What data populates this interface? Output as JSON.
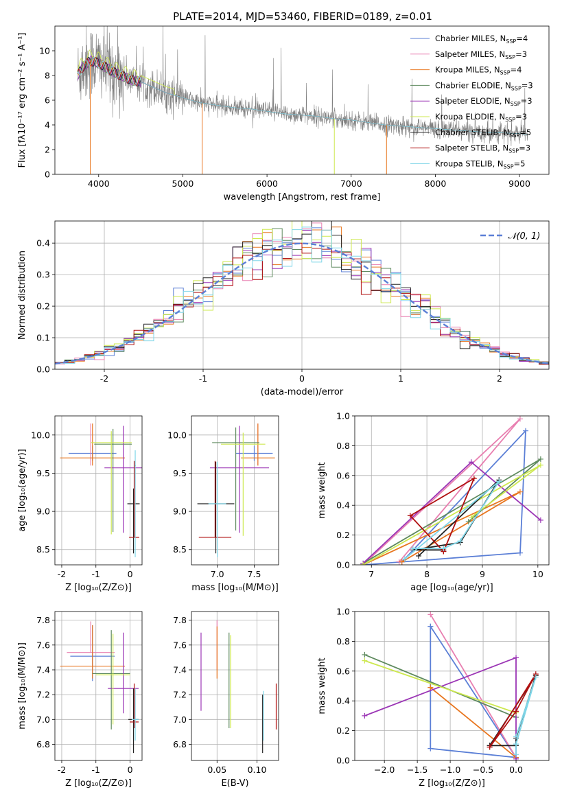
{
  "figure_title": "PLATE=2014, MJD=53460, FIBERID=0189, z=0.01",
  "colors": {
    "Chabrier MILES": "#5b7fd6",
    "Salpeter MILES": "#e87fb0",
    "Kroupa MILES": "#e8761f",
    "Chabrier ELODIE": "#5e8a5e",
    "Salpeter ELODIE": "#9b35b5",
    "Kroupa ELODIE": "#cde84f",
    "Chabrier STELIB": "#222222",
    "Salpeter STELIB": "#b01010",
    "Kroupa STELIB": "#7fd6e8",
    "data_gray": "#808080",
    "gauss": "#5b7fd6"
  },
  "chart_data": [
    {
      "type": "line",
      "id": "spectrum",
      "title": "",
      "xlabel": "wavelength [Angstrom, rest frame]",
      "ylabel": "Flux [fλ10⁻¹⁷ erg cm⁻² s⁻¹ A⁻¹]",
      "xlim": [
        3480,
        9350
      ],
      "ylim": [
        0,
        12
      ],
      "xticks": [
        4000,
        5000,
        6000,
        7000,
        8000,
        9000
      ],
      "yticks": [
        0,
        2,
        4,
        6,
        8,
        10
      ],
      "legend_position": "top-right",
      "legend": [
        "Chabrier MILES, N_SSP=4",
        "Salpeter MILES, N_SSP=3",
        "Kroupa MILES, N_SSP=4",
        "Chabrier ELODIE, N_SSP=3",
        "Salpeter ELODIE, N_SSP=3",
        "Kroupa ELODIE, N_SSP=3",
        "Chabrier STELIB, N_SSP=5",
        "Salpeter STELIB, N_SSP=3",
        "Kroupa STELIB, N_SSP=5"
      ],
      "legend_main": [
        "Chabrier MILES, N",
        "Salpeter MILES, N",
        "Kroupa MILES, N",
        "Chabrier ELODIE, N",
        "Salpeter ELODIE, N",
        "Kroupa ELODIE, N",
        "Chabrier STELIB, N",
        "Salpeter STELIB, N",
        "Kroupa STELIB, N"
      ],
      "legend_sub": "SSP",
      "legend_n": [
        "=4",
        "=3",
        "=4",
        "=3",
        "=3",
        "=3",
        "=5",
        "=3",
        "=5"
      ],
      "model_continuum": {
        "x": [
          3750,
          3800,
          3900,
          4000,
          4100,
          4200,
          4300,
          4400,
          4500,
          4600,
          4700,
          4800,
          4900,
          5000,
          5200,
          5400,
          5600,
          5800,
          6000,
          6200,
          6400,
          6600,
          6800,
          7000,
          7200,
          7400,
          7600,
          7800,
          8000,
          8200,
          8400,
          8600,
          8800,
          9000,
          9100
        ],
        "y": [
          8.0,
          8.6,
          9.2,
          9.0,
          8.6,
          8.2,
          7.9,
          7.6,
          7.5,
          7.2,
          6.9,
          6.6,
          6.4,
          6.2,
          5.8,
          5.6,
          5.4,
          5.3,
          5.1,
          4.9,
          4.8,
          4.7,
          4.5,
          4.4,
          4.2,
          4.0,
          3.9,
          3.8,
          3.7,
          3.6,
          3.5,
          3.4,
          3.35,
          3.3,
          3.25
        ]
      },
      "dips": [
        {
          "x": 3900,
          "series": "Kroupa MILES",
          "y": 0
        },
        {
          "x": 5230,
          "series": "Kroupa MILES",
          "y": 0
        },
        {
          "x": 6800,
          "series": "Kroupa ELODIE",
          "y": 0
        },
        {
          "x": 7420,
          "series": "Kroupa MILES",
          "y": 0
        }
      ],
      "data_range": [
        3750,
        9100
      ]
    },
    {
      "type": "line",
      "id": "residual_histogram",
      "xlabel": "(data-model)/error",
      "ylabel": "Normed distribution",
      "xlim": [
        -2.5,
        2.5
      ],
      "ylim": [
        0,
        0.47
      ],
      "xticks": [
        -2,
        -1,
        0,
        1,
        2
      ],
      "yticks": [
        0.0,
        0.1,
        0.2,
        0.3,
        0.4
      ],
      "grid": true,
      "legend_position": "top-right",
      "legend": [
        "N(0,1)"
      ],
      "legend_tex": "𝒩(0, 1)",
      "bin_width": 0.1
    },
    {
      "type": "scatter",
      "id": "age_vs_Z",
      "xlabel": "Z [log₁₀(Z/Z⊙)]",
      "ylabel": "age  [log₁₀(age/yr)]",
      "xlim": [
        -2.2,
        0.35
      ],
      "ylim": [
        8.3,
        10.25
      ],
      "xticks": [
        -2,
        -1,
        0
      ],
      "yticks": [
        8.5,
        9.0,
        9.5,
        10.0
      ],
      "grid": true,
      "points": [
        {
          "series": "Chabrier MILES",
          "x": -1.1,
          "xerr": 0.7,
          "y": 9.76,
          "yerr": [
            0.1,
            0.1
          ]
        },
        {
          "series": "Salpeter MILES",
          "x": -1.15,
          "xerr": 0.0,
          "y": 9.9,
          "yerr": [
            0.3,
            0.25
          ]
        },
        {
          "series": "Kroupa MILES",
          "x": -1.1,
          "xerr": 0.95,
          "y": 9.7,
          "yerr": [
            0.1,
            0.45
          ]
        },
        {
          "series": "Chabrier ELODIE",
          "x": -0.5,
          "xerr": 0.55,
          "y": 9.88,
          "yerr": [
            1.15,
            0.2
          ]
        },
        {
          "series": "Salpeter ELODIE",
          "x": -0.2,
          "xerr": 0.55,
          "y": 9.57,
          "yerr": [
            0.85,
            0.55
          ]
        },
        {
          "series": "Kroupa ELODIE",
          "x": -0.55,
          "xerr": 0.6,
          "y": 9.9,
          "yerr": [
            1.2,
            0.15
          ]
        },
        {
          "series": "Chabrier STELIB",
          "x": 0.1,
          "xerr": 0.18,
          "y": 9.1,
          "yerr": [
            0.65,
            0.2
          ]
        },
        {
          "series": "Salpeter STELIB",
          "x": 0.12,
          "xerr": 0.15,
          "y": 8.66,
          "yerr": [
            0.0,
            1.0
          ]
        },
        {
          "series": "Kroupa STELIB",
          "x": 0.15,
          "xerr": 0.02,
          "y": 9.6,
          "yerr": [
            1.2,
            0.2
          ]
        }
      ]
    },
    {
      "type": "scatter",
      "id": "age_vs_mass",
      "xlabel": "mass [log₁₀(M/M⊙)]",
      "ylabel": "",
      "xlim": [
        6.65,
        7.83
      ],
      "ylim": [
        8.3,
        10.25
      ],
      "xticks": [
        7.0,
        7.5
      ],
      "yticks": [
        8.5,
        9.0,
        9.5,
        10.0
      ],
      "grid": true,
      "points": [
        {
          "series": "Chabrier MILES",
          "x": 7.5,
          "xerr": 0.25,
          "y": 9.76,
          "yerr": [
            0.1,
            0.1
          ]
        },
        {
          "series": "Salpeter MILES",
          "x": 7.55,
          "xerr": 0.0,
          "y": 9.9,
          "yerr": [
            0.3,
            0.25
          ]
        },
        {
          "series": "Kroupa MILES",
          "x": 7.55,
          "xerr": 0.23,
          "y": 9.7,
          "yerr": [
            0.1,
            0.45
          ]
        },
        {
          "series": "Chabrier ELODIE",
          "x": 7.25,
          "xerr": 0.32,
          "y": 9.9,
          "yerr": [
            1.15,
            0.2
          ]
        },
        {
          "series": "Salpeter ELODIE",
          "x": 7.3,
          "xerr": 0.4,
          "y": 9.57,
          "yerr": [
            0.85,
            0.55
          ]
        },
        {
          "series": "Kroupa ELODIE",
          "x": 7.35,
          "xerr": 0.3,
          "y": 9.88,
          "yerr": [
            1.2,
            0.15
          ]
        },
        {
          "series": "Chabrier STELIB",
          "x": 6.98,
          "xerr": 0.25,
          "y": 9.1,
          "yerr": [
            0.65,
            0.55
          ]
        },
        {
          "series": "Salpeter STELIB",
          "x": 6.97,
          "xerr": 0.22,
          "y": 8.66,
          "yerr": [
            0.0,
            1.0
          ]
        },
        {
          "series": "Kroupa STELIB",
          "x": 7.0,
          "xerr": 0.12,
          "y": 9.1,
          "yerr": [
            0.7,
            0.55
          ]
        }
      ]
    },
    {
      "type": "line",
      "id": "mass_weight_vs_age",
      "xlabel": "age  [log₁₀(age/yr)]",
      "ylabel": "mass weight",
      "xlim": [
        6.7,
        10.2
      ],
      "ylim": [
        0,
        1.0
      ],
      "xticks": [
        7,
        8,
        9,
        10
      ],
      "yticks": [
        0.0,
        0.2,
        0.4,
        0.6,
        0.8,
        1.0
      ],
      "grid": true,
      "series": [
        {
          "series": "Chabrier MILES",
          "x": [
            6.85,
            9.68,
            9.78,
            7.55
          ],
          "y": [
            0.0,
            0.08,
            0.9,
            0.02
          ]
        },
        {
          "series": "Salpeter MILES",
          "x": [
            7.5,
            9.68,
            6.85
          ],
          "y": [
            0.02,
            0.98,
            0.0
          ]
        },
        {
          "series": "Kroupa MILES",
          "x": [
            6.85,
            9.68,
            7.55
          ],
          "y": [
            0.0,
            0.49,
            0.02
          ]
        },
        {
          "series": "Chabrier ELODIE",
          "x": [
            6.85,
            10.05,
            8.75
          ],
          "y": [
            0.01,
            0.71,
            0.29
          ]
        },
        {
          "series": "Salpeter ELODIE",
          "x": [
            6.85,
            8.8,
            10.05
          ],
          "y": [
            0.01,
            0.69,
            0.3
          ]
        },
        {
          "series": "Kroupa ELODIE",
          "x": [
            6.85,
            10.05,
            8.8
          ],
          "y": [
            0.0,
            0.67,
            0.32
          ]
        },
        {
          "series": "Chabrier STELIB",
          "x": [
            8.3,
            7.75,
            8.6,
            9.3,
            7.85
          ],
          "y": [
            0.1,
            0.1,
            0.15,
            0.57,
            0.06
          ]
        },
        {
          "series": "Salpeter STELIB",
          "x": [
            8.3,
            8.85,
            7.7,
            8.3
          ],
          "y": [
            0.09,
            0.58,
            0.33,
            0.09
          ]
        },
        {
          "series": "Kroupa STELIB",
          "x": [
            7.75,
            8.3,
            8.6,
            9.3,
            7.6
          ],
          "y": [
            0.11,
            0.11,
            0.16,
            0.56,
            0.04
          ]
        }
      ]
    },
    {
      "type": "scatter",
      "id": "mass_vs_Z",
      "xlabel": "Z [log₁₀(Z/Z⊙)]",
      "ylabel": "mass [log₁₀(M/M⊙)]",
      "xlim": [
        -2.2,
        0.35
      ],
      "ylim": [
        6.67,
        7.87
      ],
      "xticks": [
        -2,
        -1,
        0
      ],
      "yticks": [
        6.8,
        7.0,
        7.2,
        7.4,
        7.6,
        7.8
      ],
      "grid": true,
      "points": [
        {
          "series": "Chabrier MILES",
          "x": -1.1,
          "xerr": 0.65,
          "y": 7.51,
          "yerr": [
            0.2,
            0.25
          ]
        },
        {
          "series": "Salpeter MILES",
          "x": -1.15,
          "xerr": 0.7,
          "y": 7.54,
          "yerr": [
            0.0,
            0.25
          ]
        },
        {
          "series": "Kroupa MILES",
          "x": -1.1,
          "xerr": 0.95,
          "y": 7.43,
          "yerr": [
            0.1,
            0.33
          ]
        },
        {
          "series": "Chabrier ELODIE",
          "x": -0.55,
          "xerr": 0.55,
          "y": 7.37,
          "yerr": [
            0.45,
            0.35
          ]
        },
        {
          "series": "Salpeter ELODIE",
          "x": -0.2,
          "xerr": 0.45,
          "y": 7.25,
          "yerr": [
            0.2,
            0.45
          ]
        },
        {
          "series": "Kroupa ELODIE",
          "x": -0.5,
          "xerr": 0.5,
          "y": 7.36,
          "yerr": [
            0.4,
            0.33
          ]
        },
        {
          "series": "Chabrier STELIB",
          "x": 0.1,
          "xerr": 0.15,
          "y": 7.0,
          "yerr": [
            0.27,
            0.25
          ]
        },
        {
          "series": "Salpeter STELIB",
          "x": 0.12,
          "xerr": 0.13,
          "y": 6.98,
          "yerr": [
            0.05,
            0.31
          ]
        },
        {
          "series": "Kroupa STELIB",
          "x": 0.15,
          "xerr": 0.1,
          "y": 7.0,
          "yerr": [
            0.17,
            0.25
          ]
        }
      ]
    },
    {
      "type": "scatter",
      "id": "mass_vs_ebv",
      "xlabel": "E(B-V)",
      "ylabel": "",
      "xlim": [
        0.018,
        0.127
      ],
      "ylim": [
        6.67,
        7.87
      ],
      "xticks": [
        0.05,
        0.1
      ],
      "yticks": [
        6.8,
        7.0,
        7.2,
        7.4,
        7.6,
        7.8
      ],
      "grid": true,
      "points": [
        {
          "series": "Salpeter ELODIE",
          "x": 0.03,
          "xerr": 0,
          "y": 7.4,
          "yerr": [
            0.33,
            0.3
          ]
        },
        {
          "series": "Salpeter MILES",
          "x": 0.05,
          "xerr": 0,
          "y": 7.6,
          "yerr": [
            0.2,
            0.2
          ]
        },
        {
          "series": "Kroupa MILES",
          "x": 0.05,
          "xerr": 0,
          "y": 7.55,
          "yerr": [
            0.22,
            0.2
          ]
        },
        {
          "series": "Chabrier ELODIE",
          "x": 0.065,
          "xerr": 0,
          "y": 7.3,
          "yerr": [
            0.37,
            0.4
          ]
        },
        {
          "series": "Kroupa ELODIE",
          "x": 0.067,
          "xerr": 0,
          "y": 7.3,
          "yerr": [
            0.37,
            0.38
          ]
        },
        {
          "series": "Chabrier STELIB",
          "x": 0.107,
          "xerr": 0,
          "y": 7.0,
          "yerr": [
            0.27,
            0.2
          ]
        },
        {
          "series": "Kroupa STELIB",
          "x": 0.108,
          "xerr": 0,
          "y": 7.0,
          "yerr": [
            0.17,
            0.23
          ]
        },
        {
          "series": "Salpeter STELIB",
          "x": 0.124,
          "xerr": 0,
          "y": 7.1,
          "yerr": [
            0.18,
            0.19
          ]
        }
      ]
    },
    {
      "type": "line",
      "id": "mass_weight_vs_Z",
      "xlabel": "Z [log₁₀(Z/Z⊙)]",
      "ylabel": "mass weight",
      "xlim": [
        -2.45,
        0.5
      ],
      "ylim": [
        0,
        1.0
      ],
      "xticks": [
        -2.0,
        -1.5,
        -1.0,
        -0.5,
        0.0
      ],
      "xticklabels": [
        "−2.0",
        "−1.5",
        "−1.0",
        "−0.5",
        "0.0"
      ],
      "yticks": [
        0.0,
        0.2,
        0.4,
        0.6,
        0.8,
        1.0
      ],
      "grid": true,
      "series": [
        {
          "series": "Chabrier MILES",
          "x": [
            -1.3,
            -1.3,
            0.0,
            -1.3
          ],
          "y": [
            0.9,
            0.08,
            0.02,
            0.9
          ]
        },
        {
          "series": "Salpeter MILES",
          "x": [
            -1.3,
            0.0
          ],
          "y": [
            0.98,
            0.02
          ]
        },
        {
          "series": "Kroupa MILES",
          "x": [
            -1.3,
            0.0,
            -1.3
          ],
          "y": [
            0.49,
            0.02,
            0.49
          ]
        },
        {
          "series": "Chabrier ELODIE",
          "x": [
            -2.3,
            0.0
          ],
          "y": [
            0.71,
            0.29
          ]
        },
        {
          "series": "Salpeter ELODIE",
          "x": [
            -2.3,
            0.0,
            0.0
          ],
          "y": [
            0.3,
            0.69,
            0.01
          ]
        },
        {
          "series": "Kroupa ELODIE",
          "x": [
            -2.3,
            0.0
          ],
          "y": [
            0.67,
            0.32
          ]
        },
        {
          "series": "Chabrier STELIB",
          "x": [
            -0.4,
            0.0,
            0.0,
            0.3,
            -0.4
          ],
          "y": [
            0.1,
            0.1,
            0.15,
            0.57,
            0.1
          ]
        },
        {
          "series": "Salpeter STELIB",
          "x": [
            -0.4,
            0.3,
            0.0,
            -0.4
          ],
          "y": [
            0.09,
            0.58,
            0.33,
            0.09
          ]
        },
        {
          "series": "Kroupa STELIB",
          "x": [
            0.0,
            0.0,
            0.3,
            0.0
          ],
          "y": [
            0.04,
            0.11,
            0.56,
            0.16
          ]
        }
      ]
    }
  ]
}
